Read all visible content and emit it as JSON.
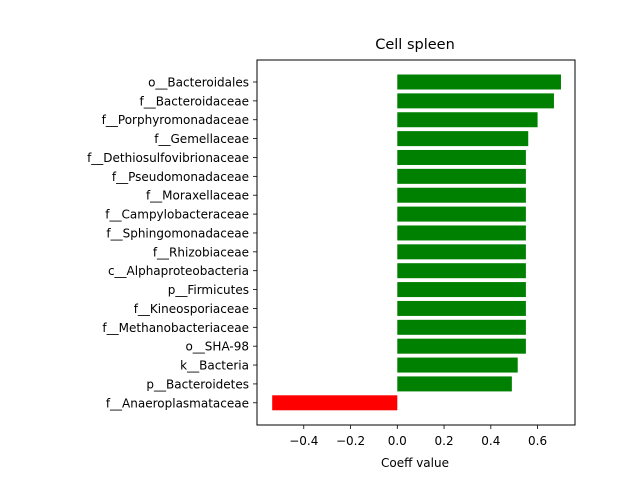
{
  "chart_data": {
    "type": "bar",
    "orientation": "horizontal",
    "title": "Cell spleen",
    "xlabel": "Coeff value",
    "ylabel": "",
    "xlim": [
      -0.6,
      0.76
    ],
    "xticks": [
      -0.4,
      -0.2,
      0.0,
      0.2,
      0.4,
      0.6
    ],
    "xtick_labels": [
      "−0.4",
      "−0.2",
      "0.0",
      "0.2",
      "0.4",
      "0.6"
    ],
    "grid": false,
    "categories": [
      "o__Bacteroidales",
      "f__Bacteroidaceae",
      "f__Porphyromonadaceae",
      "f__Gemellaceae",
      "f__Dethiosulfovibrionaceae",
      "f__Pseudomonadaceae",
      "f__Moraxellaceae",
      "f__Campylobacteraceae",
      "f__Sphingomonadaceae",
      "f__Rhizobiaceae",
      "c__Alphaproteobacteria",
      "p__Firmicutes",
      "f__Kineosporiaceae",
      "f__Methanobacteriaceae",
      "o__SHA-98",
      "k__Bacteria",
      "p__Bacteroidetes",
      "f__Anaeroplasmataceae"
    ],
    "values": [
      0.7,
      0.67,
      0.6,
      0.56,
      0.55,
      0.55,
      0.55,
      0.55,
      0.55,
      0.55,
      0.55,
      0.55,
      0.55,
      0.55,
      0.55,
      0.515,
      0.49,
      -0.535
    ],
    "colors": {
      "positive": "#008000",
      "negative": "#ff0000"
    }
  }
}
